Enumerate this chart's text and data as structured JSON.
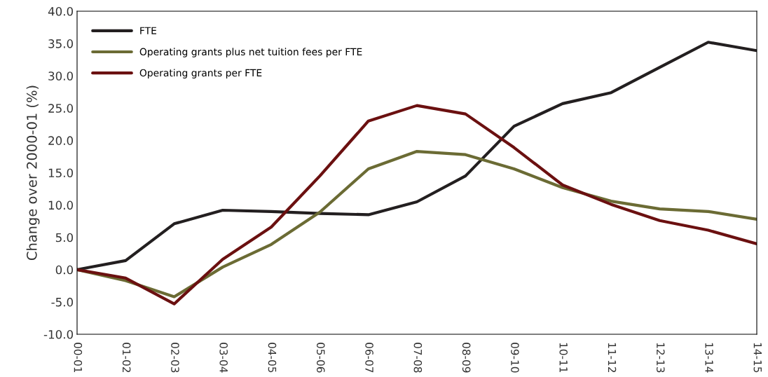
{
  "chart_data": {
    "type": "line",
    "ylabel": "Change over 2000-01 (%)",
    "categories": [
      "00-01",
      "01-02",
      "02-03",
      "03-04",
      "04-05",
      "05-06",
      "06-07",
      "07-08",
      "08-09",
      "09-10",
      "10-11",
      "11-12",
      "12-13",
      "13-14",
      "14-15"
    ],
    "series": [
      {
        "name": "FTE",
        "color": "#231f20",
        "values": [
          0,
          1.4,
          7.1,
          9.2,
          9.0,
          8.7,
          8.5,
          10.5,
          14.5,
          22.2,
          25.7,
          27.4,
          31.3,
          35.2,
          33.9
        ]
      },
      {
        "name": "Operating grants plus net tuition fees per FTE",
        "color": "#6b6b34",
        "values": [
          0,
          -1.7,
          -4.2,
          0.4,
          3.9,
          8.9,
          15.6,
          18.3,
          17.8,
          15.6,
          12.7,
          10.6,
          9.4,
          9.0,
          7.8
        ]
      },
      {
        "name": "Operating grants per FTE",
        "color": "#6b1010",
        "values": [
          0,
          -1.3,
          -5.3,
          1.6,
          6.6,
          14.5,
          23.0,
          25.4,
          24.1,
          18.9,
          13.1,
          10.1,
          7.6,
          6.1,
          4.0
        ]
      }
    ],
    "ylim": [
      -10,
      40
    ],
    "yticks": [
      {
        "value": -10,
        "label": "-10.0"
      },
      {
        "value": -5,
        "label": "-5.0"
      },
      {
        "value": 0,
        "label": "0.0"
      },
      {
        "value": 5,
        "label": "5.0"
      },
      {
        "value": 10,
        "label": "10.0"
      },
      {
        "value": 15,
        "label": "15.0"
      },
      {
        "value": 20,
        "label": "20.0"
      },
      {
        "value": 25,
        "label": "25.0"
      },
      {
        "value": 30,
        "label": "30.0"
      },
      {
        "value": 35,
        "label": "35.0"
      },
      {
        "value": 40,
        "label": "40.0"
      }
    ],
    "legend": "top left",
    "grid": false,
    "marker": "none",
    "line_style": "solid"
  }
}
